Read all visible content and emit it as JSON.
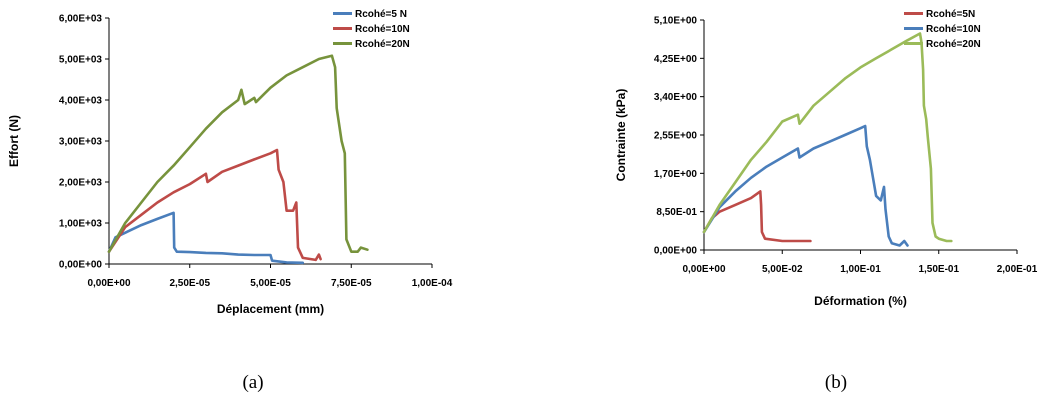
{
  "chart_data": [
    {
      "type": "line",
      "caption": "(a)",
      "xlabel": "Déplacement (mm)",
      "ylabel": "Effort (N)",
      "xlim": [
        0,
        0.0001
      ],
      "ylim": [
        0,
        6000
      ],
      "xticks": [
        0,
        2.5e-05,
        5e-05,
        7.5e-05,
        0.0001
      ],
      "xtick_labels": [
        "0,00E+00",
        "2,50E-05",
        "5,00E-05",
        "7,50E-05",
        "1,00E-04"
      ],
      "yticks": [
        0,
        1000,
        2000,
        3000,
        4000,
        5000,
        6000
      ],
      "ytick_labels": [
        "0,00E+00",
        "1,00E+03",
        "2,00E+03",
        "3,00E+03",
        "4,00E+03",
        "5,00E+03",
        "6,00E+03"
      ],
      "grid": false,
      "legend_position": "top-right",
      "series": [
        {
          "name": "Rcohé=5 N",
          "color": "#4a7ebb",
          "points": [
            [
              0,
              300
            ],
            [
              2e-06,
              650
            ],
            [
              6e-06,
              800
            ],
            [
              1e-05,
              950
            ],
            [
              1.5e-05,
              1100
            ],
            [
              2e-05,
              1250
            ],
            [
              2.02e-05,
              400
            ],
            [
              2.1e-05,
              300
            ],
            [
              2.5e-05,
              290
            ],
            [
              3e-05,
              270
            ],
            [
              3.5e-05,
              260
            ],
            [
              4e-05,
              230
            ],
            [
              4.5e-05,
              220
            ],
            [
              5e-05,
              220
            ],
            [
              5.05e-05,
              80
            ],
            [
              5.5e-05,
              40
            ],
            [
              6e-05,
              30
            ]
          ]
        },
        {
          "name": "Rcohé=10N",
          "color": "#be4b48",
          "points": [
            [
              0,
              300
            ],
            [
              5e-06,
              900
            ],
            [
              1e-05,
              1200
            ],
            [
              1.5e-05,
              1500
            ],
            [
              2e-05,
              1750
            ],
            [
              2.5e-05,
              1950
            ],
            [
              3e-05,
              2200
            ],
            [
              3.05e-05,
              2000
            ],
            [
              3.5e-05,
              2250
            ],
            [
              4e-05,
              2400
            ],
            [
              4.5e-05,
              2550
            ],
            [
              5e-05,
              2700
            ],
            [
              5.2e-05,
              2780
            ],
            [
              5.25e-05,
              2300
            ],
            [
              5.4e-05,
              2000
            ],
            [
              5.5e-05,
              1300
            ],
            [
              5.7e-05,
              1300
            ],
            [
              5.8e-05,
              1500
            ],
            [
              5.85e-05,
              400
            ],
            [
              6e-05,
              150
            ],
            [
              6.4e-05,
              100
            ],
            [
              6.5e-05,
              230
            ],
            [
              6.55e-05,
              120
            ]
          ]
        },
        {
          "name": "Rcohé=20N",
          "color": "#77933c",
          "points": [
            [
              0,
              300
            ],
            [
              5e-06,
              1000
            ],
            [
              1e-05,
              1500
            ],
            [
              1.5e-05,
              2000
            ],
            [
              2e-05,
              2400
            ],
            [
              2.5e-05,
              2850
            ],
            [
              3e-05,
              3300
            ],
            [
              3.5e-05,
              3700
            ],
            [
              4e-05,
              4000
            ],
            [
              4.1e-05,
              4250
            ],
            [
              4.2e-05,
              3900
            ],
            [
              4.5e-05,
              4050
            ],
            [
              4.55e-05,
              3950
            ],
            [
              5e-05,
              4300
            ],
            [
              5.5e-05,
              4600
            ],
            [
              6e-05,
              4800
            ],
            [
              6.5e-05,
              5000
            ],
            [
              6.9e-05,
              5080
            ],
            [
              7e-05,
              4800
            ],
            [
              7.05e-05,
              3800
            ],
            [
              7.2e-05,
              3000
            ],
            [
              7.3e-05,
              2700
            ],
            [
              7.35e-05,
              600
            ],
            [
              7.5e-05,
              300
            ],
            [
              7.7e-05,
              300
            ],
            [
              7.8e-05,
              400
            ],
            [
              8e-05,
              350
            ]
          ]
        }
      ]
    },
    {
      "type": "line",
      "caption": "(b)",
      "xlabel": "Déformation (%)",
      "ylabel": "Contrainte (kPa)",
      "xlim": [
        0,
        0.2
      ],
      "ylim": [
        0,
        5.1
      ],
      "xticks": [
        0,
        0.05,
        0.1,
        0.15,
        0.2
      ],
      "xtick_labels": [
        "0,00E+00",
        "5,00E-02",
        "1,00E-01",
        "1,50E-01",
        "2,00E-01"
      ],
      "yticks": [
        0,
        0.85,
        1.7,
        2.55,
        3.4,
        4.25,
        5.1
      ],
      "ytick_labels": [
        "0,00E+00",
        "8,50E-01",
        "1,70E+00",
        "2,55E+00",
        "3,40E+00",
        "4,25E+00",
        "5,10E+00"
      ],
      "grid": false,
      "legend_position": "top-right",
      "series": [
        {
          "name": "Rcohé=5N",
          "color": "#be4b48",
          "points": [
            [
              0,
              0.4
            ],
            [
              0.005,
              0.7
            ],
            [
              0.01,
              0.85
            ],
            [
              0.02,
              1.0
            ],
            [
              0.03,
              1.15
            ],
            [
              0.036,
              1.3
            ],
            [
              0.0365,
              1.0
            ],
            [
              0.037,
              0.4
            ],
            [
              0.039,
              0.25
            ],
            [
              0.05,
              0.2
            ],
            [
              0.06,
              0.2
            ],
            [
              0.068,
              0.2
            ]
          ]
        },
        {
          "name": "Rcohé=10N",
          "color": "#4a7ebb",
          "points": [
            [
              0,
              0.4
            ],
            [
              0.01,
              0.95
            ],
            [
              0.02,
              1.3
            ],
            [
              0.03,
              1.6
            ],
            [
              0.04,
              1.85
            ],
            [
              0.05,
              2.05
            ],
            [
              0.06,
              2.25
            ],
            [
              0.061,
              2.05
            ],
            [
              0.07,
              2.25
            ],
            [
              0.08,
              2.4
            ],
            [
              0.09,
              2.55
            ],
            [
              0.1,
              2.7
            ],
            [
              0.103,
              2.75
            ],
            [
              0.104,
              2.3
            ],
            [
              0.106,
              2.0
            ],
            [
              0.108,
              1.6
            ],
            [
              0.11,
              1.2
            ],
            [
              0.113,
              1.1
            ],
            [
              0.115,
              1.4
            ],
            [
              0.116,
              0.9
            ],
            [
              0.118,
              0.3
            ],
            [
              0.12,
              0.15
            ],
            [
              0.125,
              0.1
            ],
            [
              0.128,
              0.2
            ],
            [
              0.13,
              0.1
            ]
          ]
        },
        {
          "name": "Rcohé=20N",
          "color": "#9bbb59",
          "points": [
            [
              0,
              0.4
            ],
            [
              0.01,
              1.0
            ],
            [
              0.02,
              1.5
            ],
            [
              0.03,
              2.0
            ],
            [
              0.04,
              2.4
            ],
            [
              0.05,
              2.85
            ],
            [
              0.06,
              3.0
            ],
            [
              0.061,
              2.8
            ],
            [
              0.07,
              3.2
            ],
            [
              0.08,
              3.5
            ],
            [
              0.09,
              3.8
            ],
            [
              0.1,
              4.05
            ],
            [
              0.11,
              4.25
            ],
            [
              0.12,
              4.45
            ],
            [
              0.13,
              4.65
            ],
            [
              0.138,
              4.8
            ],
            [
              0.139,
              4.6
            ],
            [
              0.14,
              4.0
            ],
            [
              0.1405,
              3.2
            ],
            [
              0.142,
              2.9
            ],
            [
              0.143,
              2.5
            ],
            [
              0.145,
              1.8
            ],
            [
              0.146,
              0.6
            ],
            [
              0.148,
              0.3
            ],
            [
              0.15,
              0.25
            ],
            [
              0.155,
              0.2
            ],
            [
              0.158,
              0.2
            ]
          ]
        }
      ]
    }
  ]
}
